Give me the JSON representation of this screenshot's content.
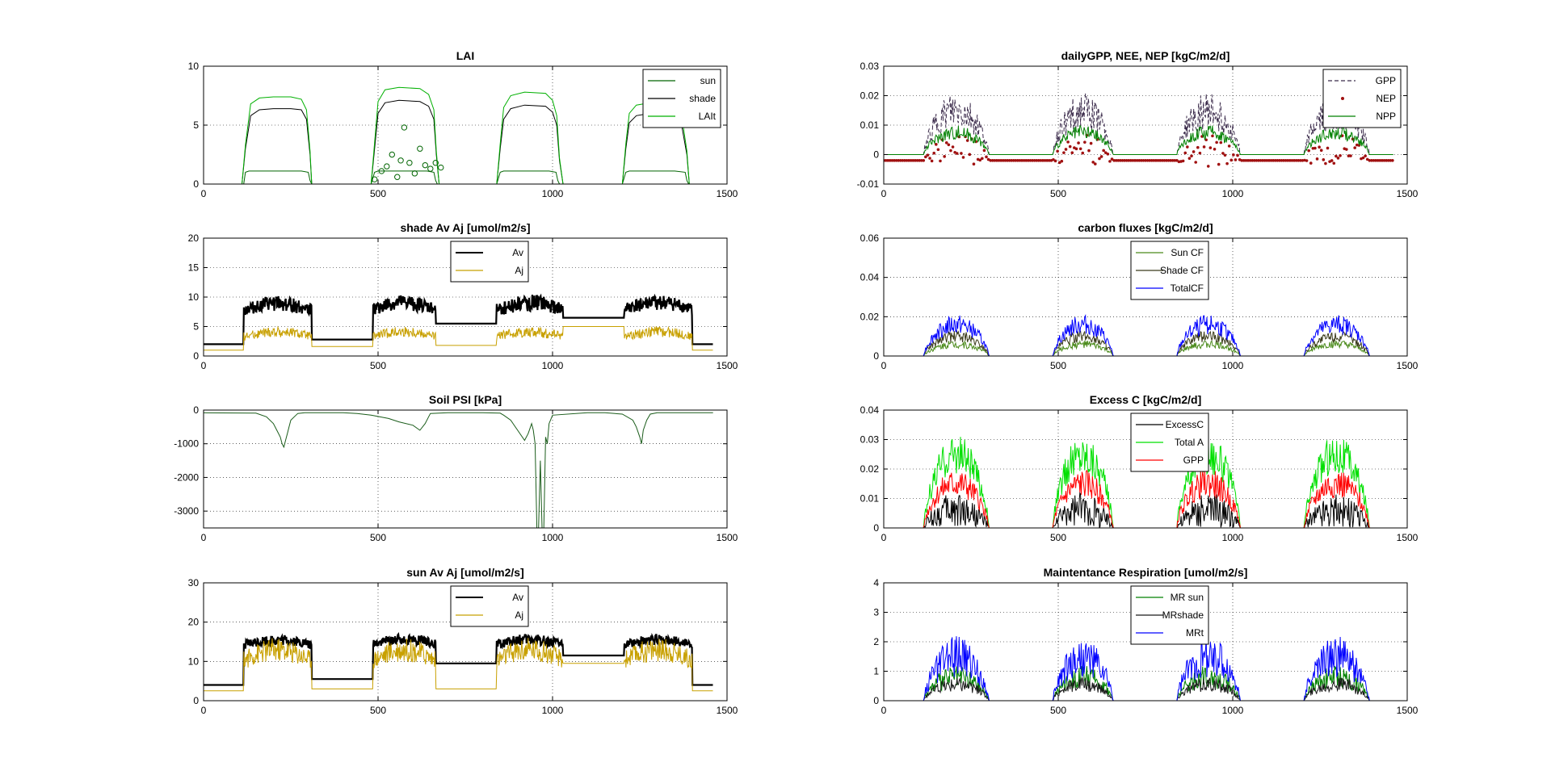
{
  "chart_data": [
    {
      "id": "lai",
      "type": "line",
      "title": "LAI",
      "xlim": [
        0,
        1500
      ],
      "ylim": [
        0,
        10
      ],
      "xticks": [
        0,
        500,
        1000,
        1500
      ],
      "yticks": [
        0,
        5,
        10
      ],
      "legend": "top-right",
      "series": [
        {
          "name": "sun",
          "color": "#006400",
          "kind": "line",
          "x": [
            0,
            115,
            120,
            130,
            150,
            200,
            250,
            280,
            300,
            305,
            310,
            320,
            390,
            480,
            490,
            500,
            540,
            600,
            640,
            660,
            665,
            670,
            680,
            840,
            850,
            860,
            900,
            950,
            990,
            1010,
            1015,
            1020,
            1030,
            1200,
            1210,
            1220,
            1260,
            1300,
            1350,
            1380,
            1385,
            1390,
            1400,
            1460
          ],
          "y": [
            0,
            0,
            1.0,
            1.1,
            1.1,
            1.1,
            1.1,
            1.1,
            1.0,
            0.3,
            0,
            0,
            0,
            0,
            1.0,
            1.1,
            1.1,
            1.1,
            1.1,
            1.0,
            0.3,
            0,
            0,
            0,
            1.0,
            1.1,
            1.1,
            1.1,
            1.1,
            1.0,
            0.3,
            0,
            0,
            0,
            1.0,
            1.1,
            1.1,
            1.1,
            1.1,
            1.0,
            0.3,
            0,
            0,
            0
          ]
        },
        {
          "name": "shade",
          "color": "#000000",
          "kind": "line",
          "x": [
            0,
            110,
            120,
            135,
            160,
            200,
            250,
            280,
            295,
            305,
            310,
            320,
            390,
            480,
            490,
            500,
            520,
            560,
            620,
            645,
            660,
            667,
            675,
            685,
            840,
            850,
            860,
            880,
            920,
            980,
            1000,
            1012,
            1020,
            1030,
            1200,
            1210,
            1220,
            1240,
            1280,
            1340,
            1370,
            1385,
            1392,
            1400,
            1460
          ],
          "y": [
            0,
            0,
            3.0,
            5.8,
            6.3,
            6.4,
            6.4,
            6.3,
            5.5,
            2.5,
            0,
            0,
            0,
            0,
            3.0,
            6.0,
            6.9,
            7.1,
            7.0,
            6.6,
            5.5,
            2.5,
            0,
            0,
            0,
            3.0,
            5.5,
            6.4,
            6.7,
            6.6,
            6.1,
            5.0,
            2.0,
            0,
            0,
            3.0,
            5.2,
            5.8,
            6.0,
            5.8,
            5.0,
            2.5,
            0,
            0,
            0
          ]
        },
        {
          "name": "LAIt",
          "color": "#00b000",
          "kind": "line",
          "x": [
            0,
            110,
            120,
            135,
            160,
            200,
            250,
            280,
            295,
            305,
            310,
            320,
            390,
            480,
            490,
            500,
            520,
            560,
            620,
            645,
            660,
            667,
            675,
            685,
            840,
            850,
            860,
            880,
            920,
            980,
            1000,
            1012,
            1020,
            1030,
            1200,
            1210,
            1220,
            1240,
            1280,
            1340,
            1370,
            1385,
            1392,
            1400,
            1460
          ],
          "y": [
            0,
            0,
            3.3,
            6.8,
            7.3,
            7.4,
            7.4,
            7.2,
            6.3,
            2.8,
            0,
            0,
            0,
            0,
            3.5,
            7.0,
            8.0,
            8.2,
            8.1,
            7.6,
            6.3,
            2.8,
            0,
            0,
            0,
            3.4,
            6.5,
            7.5,
            7.8,
            7.7,
            7.1,
            5.8,
            2.2,
            0,
            0,
            3.4,
            6.0,
            6.7,
            6.9,
            6.7,
            5.8,
            2.8,
            0,
            0,
            0
          ]
        },
        {
          "name": "",
          "color": "#006400",
          "kind": "circles",
          "x": [
            490,
            510,
            525,
            540,
            555,
            565,
            575,
            590,
            605,
            620,
            635,
            650,
            665,
            680
          ],
          "y": [
            0.4,
            1.1,
            1.5,
            2.5,
            0.6,
            2.0,
            4.8,
            1.8,
            0.9,
            3.0,
            1.6,
            1.3,
            1.8,
            1.4
          ]
        }
      ]
    },
    {
      "id": "shade_av_aj",
      "type": "line",
      "title": "shade Av Aj [umol/m2/s]",
      "xlim": [
        0,
        1500
      ],
      "ylim": [
        0,
        20
      ],
      "xticks": [
        0,
        500,
        1000,
        1500
      ],
      "yticks": [
        0,
        5,
        10,
        15,
        20
      ],
      "legend": "top-center",
      "series": [
        {
          "name": "Av",
          "color": "#000000",
          "kind": "seasonal",
          "width": 2.2,
          "base": [
            2.0,
            2.8,
            5.5,
            6.5,
            2.0
          ],
          "min": [
            4.5,
            4.5,
            4.2,
            4.5
          ],
          "max": [
            10.2,
            10.3,
            10.4,
            10.3
          ]
        },
        {
          "name": "Aj",
          "color": "#c8a000",
          "kind": "seasonal",
          "width": 1,
          "base": [
            1.0,
            1.6,
            1.8,
            5.0,
            1.0
          ],
          "min": [
            1.0,
            1.0,
            1.0,
            1.0
          ],
          "max": [
            5.0,
            5.0,
            5.0,
            5.0
          ]
        }
      ]
    },
    {
      "id": "soil_psi",
      "type": "line",
      "title": "Soil PSI [kPa]",
      "xlim": [
        0,
        1500
      ],
      "ylim": [
        -3500,
        0
      ],
      "xticks": [
        0,
        500,
        1000,
        1500
      ],
      "yticks": [
        -3000,
        -2000,
        -1000,
        0
      ],
      "legend": "none",
      "series": [
        {
          "name": "",
          "color": "#1a5c1a",
          "kind": "line",
          "x": [
            0,
            150,
            180,
            200,
            210,
            220,
            225,
            230,
            235,
            240,
            245,
            250,
            260,
            270,
            290,
            300,
            400,
            440,
            480,
            530,
            560,
            600,
            620,
            635,
            645,
            650,
            700,
            800,
            850,
            860,
            880,
            900,
            920,
            930,
            940,
            945,
            950,
            955,
            960,
            965,
            970,
            975,
            980,
            985,
            990,
            1000,
            1100,
            1150,
            1200,
            1230,
            1240,
            1250,
            1255,
            1260,
            1270,
            1280,
            1300,
            1350,
            1460
          ],
          "y": [
            -80,
            -90,
            -200,
            -400,
            -600,
            -800,
            -1000,
            -1100,
            -900,
            -700,
            -500,
            -300,
            -200,
            -100,
            -80,
            -80,
            -80,
            -100,
            -150,
            -250,
            -350,
            -450,
            -600,
            -400,
            -200,
            -100,
            -80,
            -80,
            -90,
            -150,
            -300,
            -600,
            -900,
            -700,
            -400,
            -600,
            -1000,
            -3500,
            -3500,
            -1500,
            -3500,
            -3500,
            -800,
            -1000,
            -400,
            -150,
            -80,
            -80,
            -120,
            -300,
            -500,
            -800,
            -1000,
            -600,
            -300,
            -120,
            -80,
            -80,
            -80
          ]
        }
      ]
    },
    {
      "id": "sun_av_aj",
      "type": "line",
      "title": "sun Av Aj [umol/m2/s]",
      "xlim": [
        0,
        1500
      ],
      "ylim": [
        0,
        30
      ],
      "xticks": [
        0,
        500,
        1000,
        1500
      ],
      "yticks": [
        0,
        10,
        20,
        30
      ],
      "legend": "top-center",
      "series": [
        {
          "name": "Av",
          "color": "#000000",
          "kind": "seasonal",
          "width": 2.2,
          "base": [
            4.0,
            5.5,
            9.5,
            11.5,
            4.0
          ],
          "min": [
            10.5,
            11.0,
            10.5,
            11.0
          ],
          "max": [
            16.8,
            17.0,
            17.0,
            16.8
          ]
        },
        {
          "name": "Aj",
          "color": "#c8a000",
          "kind": "seasonal",
          "width": 1,
          "base": [
            2.5,
            3.0,
            3.0,
            9.5,
            2.5
          ],
          "min": [
            2.5,
            2.5,
            2.5,
            2.5
          ],
          "max": [
            16.0,
            16.0,
            16.0,
            16.0
          ]
        }
      ]
    },
    {
      "id": "daily_gpp",
      "type": "line",
      "title": "dailyGPP, NEE, NEP [kgC/m2/d]",
      "xlim": [
        0,
        1500
      ],
      "ylim": [
        -0.01,
        0.03
      ],
      "xticks": [
        0,
        500,
        1000,
        1500
      ],
      "yticks": [
        -0.01,
        0,
        0.01,
        0.02,
        0.03
      ],
      "legend": "top-right",
      "series": [
        {
          "name": "GPP",
          "color": "#3a2a4a",
          "kind": "pulse",
          "dash": true,
          "base": 0,
          "peak": 0.021,
          "low": 0.008
        },
        {
          "name": "NEP",
          "color": "#a01010",
          "kind": "pulse_markers",
          "base": -0.002,
          "peak": 0.007,
          "low": -0.004
        },
        {
          "name": "NPP",
          "color": "#008000",
          "kind": "pulse",
          "base": 0,
          "peak": 0.01,
          "low": 0.005
        }
      ]
    },
    {
      "id": "carbon_fluxes",
      "type": "line",
      "title": "carbon fluxes [kgC/m2/d]",
      "xlim": [
        0,
        1500
      ],
      "ylim": [
        0,
        0.06
      ],
      "xticks": [
        0,
        500,
        1000,
        1500
      ],
      "yticks": [
        0,
        0.02,
        0.04,
        0.06
      ],
      "legend": "top-center",
      "series": [
        {
          "name": "Sun CF",
          "color": "#4a8a1a",
          "kind": "pulse",
          "base": 0,
          "peak": 0.008,
          "low": 0.004
        },
        {
          "name": "Shade CF",
          "color": "#3a3a1a",
          "kind": "pulse",
          "base": 0,
          "peak": 0.013,
          "low": 0.007
        },
        {
          "name": "TotalCF",
          "color": "#0000ff",
          "kind": "pulse",
          "base": 0,
          "peak": 0.021,
          "low": 0.011
        }
      ]
    },
    {
      "id": "excess_c",
      "type": "line",
      "title": "Excess C [kgC/m2/d]",
      "xlim": [
        0,
        1500
      ],
      "ylim": [
        0,
        0.04
      ],
      "xticks": [
        0,
        500,
        1000,
        1500
      ],
      "yticks": [
        0,
        0.01,
        0.02,
        0.03,
        0.04
      ],
      "legend": "top-center",
      "series": [
        {
          "name": "ExcessC",
          "color": "#000000",
          "kind": "pulse",
          "base": 0,
          "peak": 0.012,
          "low": 0.0
        },
        {
          "name": "Total A",
          "color": "#00e000",
          "kind": "pulse",
          "base": 0,
          "peak": 0.032,
          "low": 0.018
        },
        {
          "name": "GPP",
          "color": "#ff0000",
          "kind": "pulse",
          "base": 0,
          "peak": 0.02,
          "low": 0.01
        }
      ]
    },
    {
      "id": "maint_resp",
      "type": "line",
      "title": "Maintentance Respiration [umol/m2/s]",
      "xlim": [
        0,
        1500
      ],
      "ylim": [
        0,
        4
      ],
      "xticks": [
        0,
        500,
        1000,
        1500
      ],
      "yticks": [
        0,
        1,
        2,
        3,
        4
      ],
      "legend": "top-center",
      "series": [
        {
          "name": "MR sun",
          "color": "#008000",
          "kind": "pulse",
          "base": 0,
          "peak": 1.2,
          "low": 0.4
        },
        {
          "name": "MRshade",
          "color": "#1a1a1a",
          "kind": "pulse",
          "base": 0,
          "peak": 0.8,
          "low": 0.3
        },
        {
          "name": "MRt",
          "color": "#0000ff",
          "kind": "pulse",
          "base": 0,
          "peak": 2.2,
          "low": 0.8
        }
      ]
    }
  ]
}
